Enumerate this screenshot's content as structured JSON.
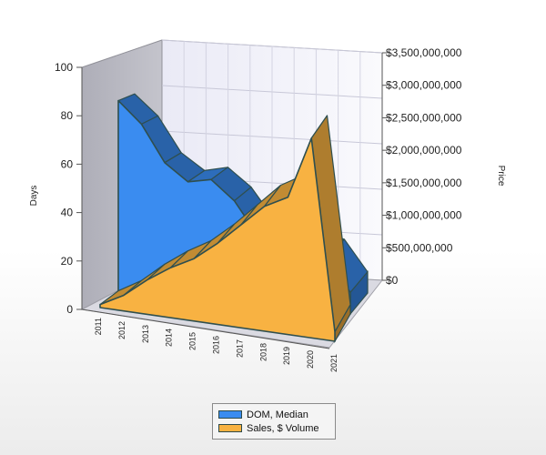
{
  "chart_data": {
    "type": "area",
    "style": "3d",
    "x": [
      "2011",
      "2012",
      "2013",
      "2014",
      "2015",
      "2016",
      "2017",
      "2018",
      "2019",
      "2020",
      "2021"
    ],
    "series": [
      {
        "name": "DOM, Median",
        "axis": "left",
        "values": [
          90,
          80,
          63,
          55,
          57,
          48,
          33,
          25,
          28,
          25,
          10
        ],
        "color": "#3a8cf0"
      },
      {
        "name": "Sales, $ Volume",
        "axis": "right",
        "values": [
          50000000,
          250000000,
          550000000,
          800000000,
          1000000000,
          1300000000,
          1650000000,
          2000000000,
          2200000000,
          3200000000,
          150000000
        ],
        "color": "#f8b242"
      }
    ],
    "y_left": {
      "label": "Days",
      "range": [
        0,
        100
      ],
      "ticks": [
        "0",
        "20",
        "40",
        "60",
        "80",
        "100"
      ]
    },
    "y_right": {
      "label": "Price",
      "range": [
        0,
        3500000000
      ],
      "ticks": [
        "$0",
        "$500,000,000",
        "$1,000,000,000",
        "$1,500,000,000",
        "$2,000,000,000",
        "$2,500,000,000",
        "$3,000,000,000",
        "$3,500,000,000"
      ]
    },
    "grid": true,
    "legend": "bottom-center"
  }
}
